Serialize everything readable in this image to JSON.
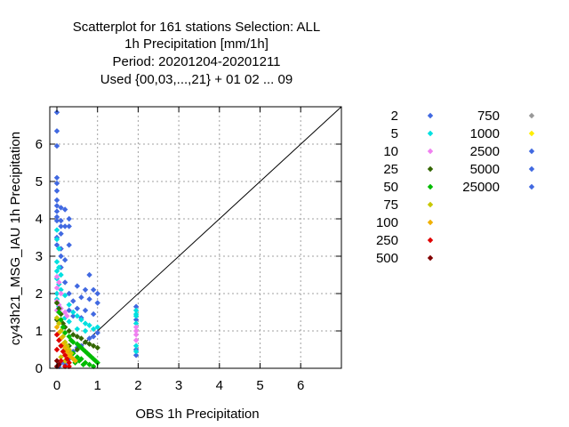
{
  "chart_data": {
    "type": "scatter",
    "title_lines": [
      "Scatterplot for  161 stations Selection: ALL",
      "1h Precipitation [mm/1h]",
      "Period: 20201204-20201211",
      "Used {00,03,...,21} + 01 02 ... 09"
    ],
    "xlabel": "OBS 1h Precipitation",
    "ylabel": "cy43h21_MSG_IAU 1h Precipitation",
    "xlim": [
      0,
      7
    ],
    "ylim": [
      0,
      7
    ],
    "xticks": [
      "0",
      "1",
      "2",
      "3",
      "4",
      "5",
      "6"
    ],
    "yticks": [
      "0",
      "1",
      "2",
      "3",
      "4",
      "5",
      "6"
    ],
    "grid": true,
    "diagonal_line": true,
    "legend_placement": "right",
    "legend_title": "",
    "series": [
      {
        "name": "2",
        "color": "#4169e1",
        "points": [
          [
            0.0,
            6.85
          ],
          [
            0.0,
            6.35
          ],
          [
            0.0,
            5.95
          ],
          [
            0.0,
            5.1
          ],
          [
            0.0,
            4.95
          ],
          [
            0.0,
            4.75
          ],
          [
            0.0,
            4.5
          ],
          [
            0.0,
            4.35
          ],
          [
            0.0,
            4.2
          ],
          [
            0.0,
            4.05
          ],
          [
            0.0,
            3.95
          ],
          [
            0.1,
            4.3
          ],
          [
            0.1,
            3.95
          ],
          [
            0.1,
            3.8
          ],
          [
            0.1,
            3.6
          ],
          [
            0.2,
            4.25
          ],
          [
            0.2,
            3.8
          ],
          [
            0.3,
            4.0
          ],
          [
            0.3,
            3.8
          ],
          [
            0.3,
            3.3
          ],
          [
            0.1,
            3.2
          ],
          [
            0.1,
            3.0
          ],
          [
            0.2,
            2.9
          ],
          [
            0.1,
            2.7
          ],
          [
            0.0,
            3.5
          ],
          [
            0.0,
            3.3
          ],
          [
            0.2,
            2.3
          ],
          [
            0.3,
            2.0
          ],
          [
            0.5,
            2.2
          ],
          [
            0.7,
            2.1
          ],
          [
            0.8,
            2.5
          ],
          [
            0.9,
            2.1
          ],
          [
            1.0,
            2.0
          ],
          [
            0.4,
            1.8
          ],
          [
            0.6,
            1.9
          ],
          [
            0.8,
            1.85
          ],
          [
            1.0,
            1.75
          ],
          [
            0.5,
            1.6
          ],
          [
            0.7,
            1.55
          ],
          [
            0.9,
            1.45
          ],
          [
            0.3,
            1.55
          ],
          [
            0.6,
            1.35
          ],
          [
            0.4,
            1.4
          ],
          [
            1.95,
            1.65
          ],
          [
            1.95,
            1.3
          ],
          [
            1.95,
            0.5
          ],
          [
            1.95,
            0.35
          ],
          [
            0.05,
            0.05
          ],
          [
            0.1,
            0.15
          ],
          [
            0.2,
            0.1
          ],
          [
            0.3,
            0.25
          ],
          [
            0.4,
            0.45
          ],
          [
            0.5,
            0.55
          ],
          [
            0.6,
            0.6
          ],
          [
            0.7,
            0.7
          ],
          [
            0.8,
            0.8
          ],
          [
            0.9,
            0.85
          ],
          [
            1.0,
            0.95
          ]
        ]
      },
      {
        "name": "5",
        "color": "#00e0e0",
        "points": [
          [
            0.0,
            3.7
          ],
          [
            0.0,
            3.45
          ],
          [
            0.05,
            3.2
          ],
          [
            0.0,
            2.85
          ],
          [
            0.05,
            2.7
          ],
          [
            0.0,
            2.6
          ],
          [
            0.1,
            2.5
          ],
          [
            0.0,
            2.4
          ],
          [
            0.05,
            2.25
          ],
          [
            0.1,
            2.1
          ],
          [
            0.0,
            2.0
          ],
          [
            0.2,
            1.95
          ],
          [
            0.3,
            1.7
          ],
          [
            0.4,
            1.5
          ],
          [
            0.5,
            1.4
          ],
          [
            0.6,
            1.3
          ],
          [
            0.7,
            1.2
          ],
          [
            0.8,
            1.15
          ],
          [
            0.9,
            1.05
          ],
          [
            1.0,
            1.1
          ],
          [
            0.5,
            1.05
          ],
          [
            0.3,
            1.25
          ],
          [
            0.2,
            1.35
          ],
          [
            0.7,
            1.0
          ],
          [
            1.95,
            1.55
          ],
          [
            1.95,
            1.45
          ],
          [
            1.95,
            1.4
          ],
          [
            1.95,
            1.2
          ],
          [
            1.95,
            0.6
          ],
          [
            1.95,
            0.45
          ],
          [
            0.0,
            1.85
          ],
          [
            0.05,
            1.65
          ]
        ]
      },
      {
        "name": "10",
        "color": "#f080f0",
        "points": [
          [
            0.0,
            2.45
          ],
          [
            0.05,
            2.3
          ],
          [
            0.0,
            2.15
          ],
          [
            0.1,
            2.0
          ],
          [
            0.0,
            1.8
          ],
          [
            0.05,
            1.7
          ],
          [
            0.1,
            1.6
          ],
          [
            0.2,
            1.5
          ],
          [
            0.25,
            1.4
          ],
          [
            0.0,
            1.55
          ],
          [
            1.95,
            1.1
          ],
          [
            1.95,
            1.0
          ],
          [
            1.95,
            0.9
          ],
          [
            1.95,
            0.75
          ]
        ]
      },
      {
        "name": "25",
        "color": "#336600",
        "points": [
          [
            0.0,
            1.75
          ],
          [
            0.05,
            1.6
          ],
          [
            0.1,
            1.45
          ],
          [
            0.0,
            1.3
          ],
          [
            0.15,
            1.2
          ],
          [
            0.2,
            1.1
          ],
          [
            0.3,
            1.0
          ],
          [
            0.4,
            0.9
          ],
          [
            0.5,
            0.85
          ],
          [
            0.6,
            0.8
          ],
          [
            0.7,
            0.7
          ],
          [
            0.8,
            0.65
          ],
          [
            0.9,
            0.6
          ],
          [
            1.0,
            0.55
          ],
          [
            0.5,
            0.5
          ],
          [
            0.3,
            0.6
          ]
        ]
      },
      {
        "name": "50",
        "color": "#00bb00",
        "points": [
          [
            0.05,
            1.5
          ],
          [
            0.1,
            1.3
          ],
          [
            0.15,
            1.1
          ],
          [
            0.2,
            0.95
          ],
          [
            0.3,
            0.85
          ],
          [
            0.35,
            0.75
          ],
          [
            0.4,
            0.7
          ],
          [
            0.5,
            0.65
          ],
          [
            0.55,
            0.6
          ],
          [
            0.6,
            0.55
          ],
          [
            0.65,
            0.5
          ],
          [
            0.7,
            0.45
          ],
          [
            0.75,
            0.4
          ],
          [
            0.8,
            0.35
          ],
          [
            0.85,
            0.3
          ],
          [
            0.9,
            0.25
          ],
          [
            0.95,
            0.2
          ],
          [
            1.0,
            0.15
          ],
          [
            0.5,
            0.3
          ],
          [
            0.6,
            0.25
          ],
          [
            0.7,
            0.15
          ],
          [
            0.8,
            0.1
          ],
          [
            0.9,
            0.05
          ],
          [
            0.4,
            0.4
          ],
          [
            0.3,
            0.45
          ],
          [
            0.2,
            0.5
          ],
          [
            0.1,
            0.6
          ],
          [
            0.55,
            0.2
          ],
          [
            0.65,
            0.1
          ],
          [
            0.45,
            0.15
          ]
        ]
      },
      {
        "name": "75",
        "color": "#c8c800",
        "points": [
          [
            0.0,
            1.35
          ],
          [
            0.05,
            1.2
          ],
          [
            0.1,
            1.0
          ],
          [
            0.15,
            0.85
          ],
          [
            0.2,
            0.7
          ],
          [
            0.25,
            0.6
          ],
          [
            0.3,
            0.5
          ],
          [
            0.35,
            0.4
          ],
          [
            0.1,
            0.3
          ],
          [
            0.2,
            0.2
          ]
        ]
      },
      {
        "name": "100",
        "color": "#f0b000",
        "points": [
          [
            0.0,
            1.1
          ],
          [
            0.05,
            0.95
          ],
          [
            0.1,
            0.8
          ],
          [
            0.15,
            0.65
          ],
          [
            0.2,
            0.55
          ],
          [
            0.25,
            0.45
          ],
          [
            0.3,
            0.35
          ],
          [
            0.35,
            0.3
          ],
          [
            0.4,
            0.25
          ],
          [
            0.45,
            0.2
          ]
        ]
      },
      {
        "name": "250",
        "color": "#e00000",
        "points": [
          [
            0.0,
            0.9
          ],
          [
            0.05,
            0.75
          ],
          [
            0.1,
            0.6
          ],
          [
            0.0,
            0.5
          ],
          [
            0.15,
            0.45
          ],
          [
            0.2,
            0.35
          ],
          [
            0.25,
            0.25
          ],
          [
            0.3,
            0.15
          ],
          [
            0.2,
            0.05
          ],
          [
            0.3,
            0.05
          ],
          [
            0.1,
            0.2
          ]
        ]
      },
      {
        "name": "500",
        "color": "#800000",
        "points": [
          [
            0.0,
            0.2
          ],
          [
            0.05,
            0.1
          ],
          [
            0.0,
            0.05
          ]
        ]
      },
      {
        "name": "750",
        "color": "#999999",
        "points": []
      },
      {
        "name": "1000",
        "color": "#ffee00",
        "points": []
      },
      {
        "name": "2500",
        "color": "#4169e1",
        "points": []
      },
      {
        "name": "5000",
        "color": "#4169e1",
        "points": []
      },
      {
        "name": "25000",
        "color": "#4169e1",
        "points": []
      }
    ]
  }
}
